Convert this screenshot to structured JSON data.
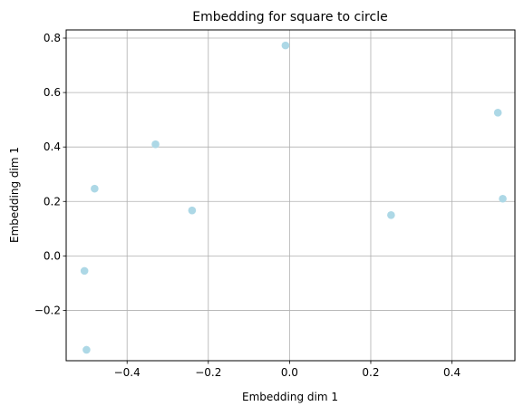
{
  "chart_data": {
    "type": "scatter",
    "title": "Embedding for square to circle",
    "xlabel": "Embedding dim 1",
    "ylabel": "Embedding dim 1",
    "xlim": [
      -0.55,
      0.555
    ],
    "ylim": [
      -0.385,
      0.83
    ],
    "xticks": [
      -0.4,
      -0.2,
      0.0,
      0.2,
      0.4
    ],
    "xtick_labels": [
      "−0.4",
      "−0.2",
      "0.0",
      "0.2",
      "0.4"
    ],
    "yticks": [
      -0.2,
      0.0,
      0.2,
      0.4,
      0.6,
      0.8
    ],
    "ytick_labels": [
      "−0.2",
      "0.0",
      "0.2",
      "0.4",
      "0.6",
      "0.8"
    ],
    "grid": true,
    "marker_color": "#add8e6",
    "points": [
      {
        "x": -0.01,
        "y": 0.773
      },
      {
        "x": 0.513,
        "y": 0.526
      },
      {
        "x": -0.33,
        "y": 0.41
      },
      {
        "x": -0.48,
        "y": 0.247
      },
      {
        "x": -0.24,
        "y": 0.167
      },
      {
        "x": 0.25,
        "y": 0.15
      },
      {
        "x": 0.525,
        "y": 0.21
      },
      {
        "x": -0.505,
        "y": -0.055
      },
      {
        "x": -0.5,
        "y": -0.345
      }
    ]
  }
}
